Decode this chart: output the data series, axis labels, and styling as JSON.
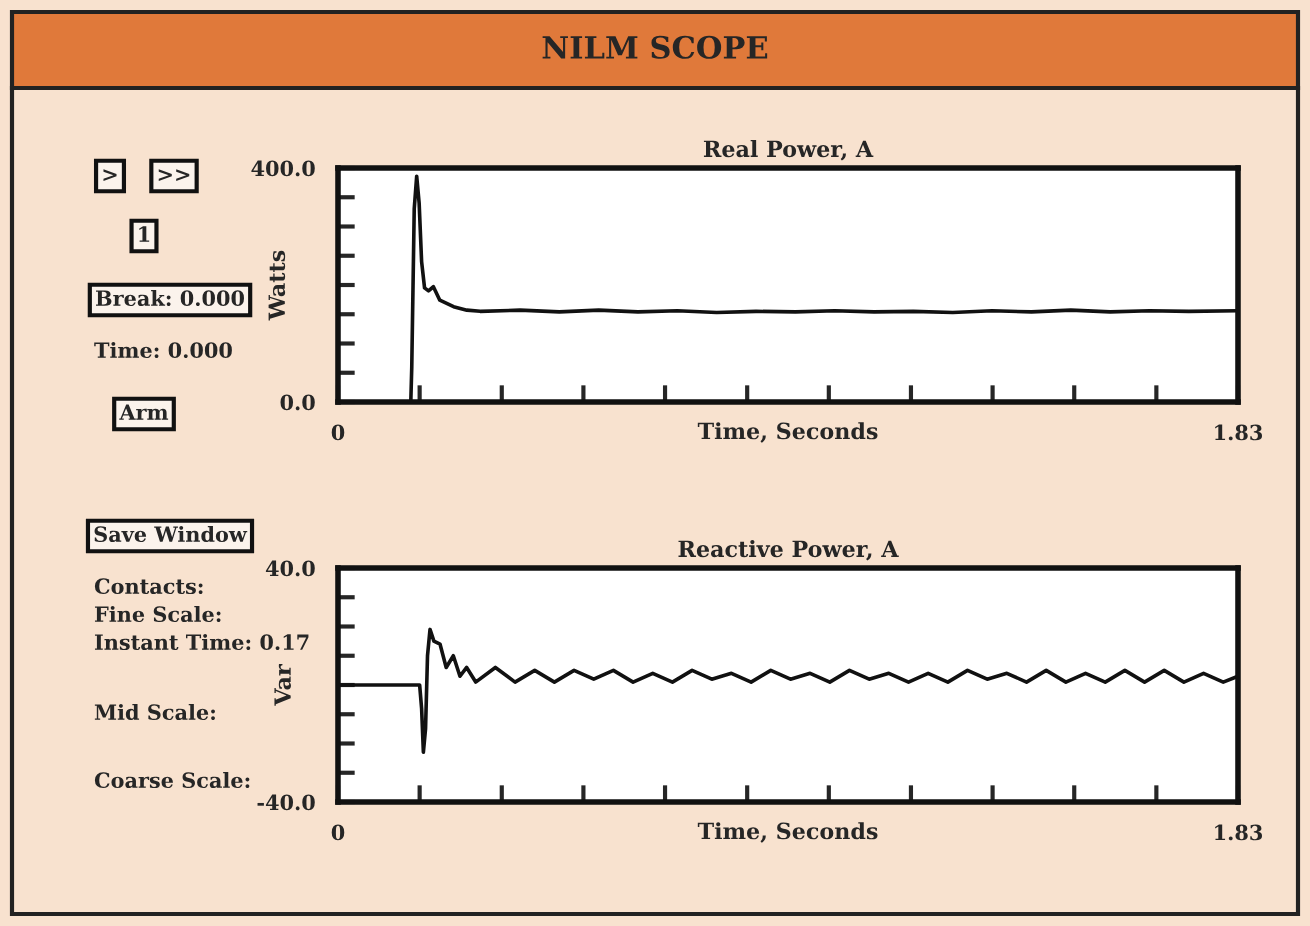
{
  "chart_data": [
    {
      "type": "other",
      "title": "NILM SCOPE",
      "annotations": [
        ">",
        ">>",
        "1",
        "Break: 0.000",
        "Time: 0.000",
        "Arm",
        "Save Window",
        "Contacts:",
        "Fine Scale:",
        "Instant Time: 0.17",
        "Mid Scale:",
        "Coarse Scale:"
      ]
    },
    {
      "type": "line",
      "title": "Real Power, A",
      "xlabel": "Time, Seconds",
      "ylabel": "Watts",
      "grid": false,
      "xlim": [
        0,
        1.83
      ],
      "xticks": [
        0,
        {
          "value": 0.166,
          "label": null
        },
        {
          "value": 0.333,
          "label": null
        },
        {
          "value": 0.499,
          "label": null
        },
        {
          "value": 0.665,
          "label": null
        },
        {
          "value": 0.832,
          "label": null
        },
        {
          "value": 0.998,
          "label": null
        },
        {
          "value": 1.165,
          "label": null
        },
        {
          "value": 1.331,
          "label": null
        },
        {
          "value": 1.497,
          "label": null
        },
        {
          "value": 1.664,
          "label": null
        },
        1.83
      ],
      "ylim": [
        0,
        400
      ],
      "yticks": [
        {
          "value": 0,
          "label": "0.0"
        },
        {
          "value": 50,
          "label": null
        },
        {
          "value": 100,
          "label": null
        },
        {
          "value": 150,
          "label": null
        },
        {
          "value": 200,
          "label": null
        },
        {
          "value": 250,
          "label": null
        },
        {
          "value": 300,
          "label": null
        },
        {
          "value": 350,
          "label": null
        },
        {
          "value": 400,
          "label": "400.0"
        }
      ],
      "series": [
        {
          "color": "#111111",
          "x": [
            0,
            0.148,
            0.15,
            0.155,
            0.16,
            0.165,
            0.17,
            0.176,
            0.184,
            0.194,
            0.207,
            0.235,
            0.262,
            0.289,
            0.37,
            0.45,
            0.53,
            0.61,
            0.69,
            0.77,
            0.85,
            0.93,
            1.01,
            1.09,
            1.17,
            1.25,
            1.33,
            1.41,
            1.49,
            1.57,
            1.65,
            1.73,
            1.83
          ],
          "values": [
            0,
            0,
            60,
            330,
            386,
            340,
            240,
            195,
            190,
            197,
            174,
            163,
            157,
            155,
            157,
            154,
            157,
            154,
            156,
            153,
            155,
            154,
            156,
            154,
            155,
            153,
            156,
            154,
            157,
            154,
            156,
            155,
            156
          ]
        }
      ]
    },
    {
      "type": "line",
      "title": "Reactive Power, A",
      "xlabel": "Time, Seconds",
      "ylabel": "Var",
      "grid": false,
      "xlim": [
        0,
        1.83
      ],
      "xticks": [
        0,
        {
          "value": 0.166,
          "label": null
        },
        {
          "value": 0.333,
          "label": null
        },
        {
          "value": 0.499,
          "label": null
        },
        {
          "value": 0.665,
          "label": null
        },
        {
          "value": 0.832,
          "label": null
        },
        {
          "value": 0.998,
          "label": null
        },
        {
          "value": 1.165,
          "label": null
        },
        {
          "value": 1.331,
          "label": null
        },
        {
          "value": 1.497,
          "label": null
        },
        {
          "value": 1.664,
          "label": null
        },
        1.83
      ],
      "ylim": [
        -40,
        40
      ],
      "yticks": [
        {
          "value": -40,
          "label": "-40.0"
        },
        {
          "value": -30,
          "label": null
        },
        {
          "value": -20,
          "label": null
        },
        {
          "value": -10,
          "label": null
        },
        {
          "value": 0,
          "label": null
        },
        {
          "value": 10,
          "label": null
        },
        {
          "value": 20,
          "label": null
        },
        {
          "value": 30,
          "label": null
        },
        {
          "value": 40,
          "label": "40.0"
        }
      ],
      "series": [
        {
          "color": "#111111",
          "x": [
            0,
            0.166,
            0.17,
            0.1736,
            0.178,
            0.182,
            0.1871,
            0.195,
            0.2074,
            0.22,
            0.2345,
            0.248,
            0.2616,
            0.28,
            0.32,
            0.36,
            0.4,
            0.44,
            0.48,
            0.52,
            0.56,
            0.6,
            0.64,
            0.68,
            0.72,
            0.76,
            0.8,
            0.84,
            0.88,
            0.92,
            0.96,
            1.0,
            1.04,
            1.08,
            1.12,
            1.16,
            1.2,
            1.24,
            1.28,
            1.32,
            1.36,
            1.4,
            1.44,
            1.48,
            1.52,
            1.56,
            1.6,
            1.64,
            1.68,
            1.72,
            1.76,
            1.8,
            1.83
          ],
          "values": [
            0,
            0,
            -8,
            -23,
            -15,
            10,
            19,
            15,
            14,
            6,
            10,
            3,
            6,
            1,
            6,
            1,
            5,
            1,
            5,
            2,
            5,
            1,
            4,
            1,
            5,
            2,
            4,
            1,
            5,
            2,
            4,
            1,
            5,
            2,
            4,
            1,
            4,
            1,
            5,
            2,
            4,
            1,
            5,
            1,
            4,
            1,
            5,
            1,
            5,
            1,
            4,
            1,
            3
          ]
        }
      ]
    }
  ]
}
